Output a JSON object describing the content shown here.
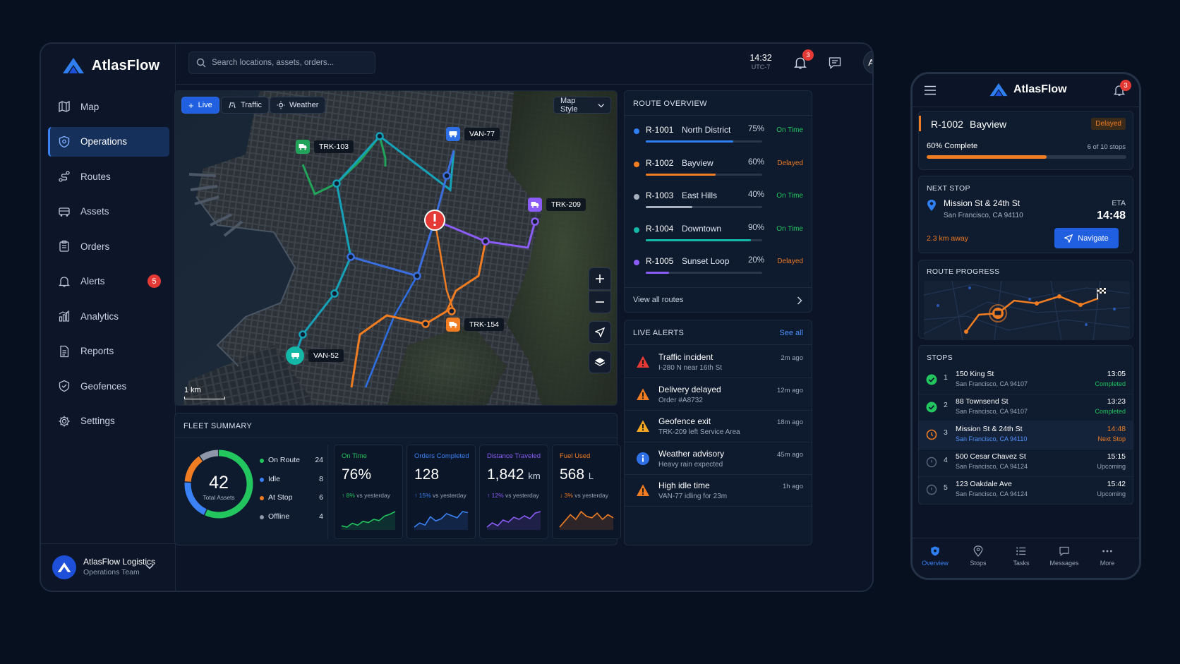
{
  "app": {
    "name": "AtlasFlow"
  },
  "sidebar": {
    "items": [
      {
        "label": "Map",
        "icon": "map-icon"
      },
      {
        "label": "Operations",
        "icon": "shield-icon",
        "active": true
      },
      {
        "label": "Routes",
        "icon": "route-icon"
      },
      {
        "label": "Assets",
        "icon": "truck-icon"
      },
      {
        "label": "Orders",
        "icon": "clipboard-icon"
      },
      {
        "label": "Alerts",
        "icon": "bell-icon",
        "badge": "5"
      },
      {
        "label": "Analytics",
        "icon": "bar-chart-icon"
      },
      {
        "label": "Reports",
        "icon": "document-icon"
      },
      {
        "label": "Geofences",
        "icon": "geofence-icon"
      },
      {
        "label": "Settings",
        "icon": "gear-icon"
      }
    ],
    "org": {
      "name": "AtlasFlow Logistics",
      "team": "Operations Team"
    }
  },
  "topbar": {
    "search_placeholder": "Search locations, assets, orders...",
    "time": "14:32",
    "timezone": "UTC-7",
    "notification_count": "3",
    "avatar_initials": "AM"
  },
  "map": {
    "chips": {
      "live": "Live",
      "traffic": "Traffic",
      "weather": "Weather"
    },
    "style_label": "Map Style",
    "scale_label": "1 km",
    "vehicles": [
      {
        "id": "TRK-103",
        "color": "#22a35a"
      },
      {
        "id": "VAN-77",
        "color": "#2f6fe6"
      },
      {
        "id": "TRK-209",
        "color": "#8b5cf6"
      },
      {
        "id": "TRK-154",
        "color": "#f07d22"
      },
      {
        "id": "VAN-52",
        "color": "#14b8a6"
      }
    ]
  },
  "route_overview": {
    "title": "ROUTE OVERVIEW",
    "routes": [
      {
        "id": "R-1001",
        "name": "North District",
        "progress": 75,
        "progress_label": "75%",
        "status": "On Time",
        "color": "#2f7ff0"
      },
      {
        "id": "R-1002",
        "name": "Bayview",
        "progress": 60,
        "progress_label": "60%",
        "status": "Delayed",
        "color": "#f07d22"
      },
      {
        "id": "R-1003",
        "name": "East Hills",
        "progress": 40,
        "progress_label": "40%",
        "status": "On Time",
        "color": "#a7b0bd"
      },
      {
        "id": "R-1004",
        "name": "Downtown",
        "progress": 90,
        "progress_label": "90%",
        "status": "On Time",
        "color": "#14b8a6"
      },
      {
        "id": "R-1005",
        "name": "Sunset Loop",
        "progress": 20,
        "progress_label": "20%",
        "status": "Delayed",
        "color": "#8b5cf6"
      }
    ],
    "view_all": "View all routes"
  },
  "live_alerts": {
    "title": "LIVE ALERTS",
    "see_all": "See all",
    "alerts": [
      {
        "title": "Traffic incident",
        "sub": "I-280 N near 16th St",
        "ago": "2m ago",
        "icon": "warning-red-icon"
      },
      {
        "title": "Delivery delayed",
        "sub": "Order #A8732",
        "ago": "12m ago",
        "icon": "warning-orange-icon"
      },
      {
        "title": "Geofence exit",
        "sub": "TRK-209 left Service Area",
        "ago": "18m ago",
        "icon": "warning-amber-icon"
      },
      {
        "title": "Weather advisory",
        "sub": "Heavy rain expected",
        "ago": "45m ago",
        "icon": "info-icon"
      },
      {
        "title": "High idle time",
        "sub": "VAN-77 idling for 23m",
        "ago": "1h ago",
        "icon": "warning-orange-icon"
      }
    ]
  },
  "fleet_summary": {
    "title": "FLEET SUMMARY",
    "total": "42",
    "total_label": "Total Assets",
    "legend": [
      {
        "label": "On Route",
        "value": 24,
        "value_label": "24",
        "color": "#22c55e"
      },
      {
        "label": "Idle",
        "value": 8,
        "value_label": "8",
        "color": "#3b82f6"
      },
      {
        "label": "At Stop",
        "value": 6,
        "value_label": "6",
        "color": "#f07d22"
      },
      {
        "label": "Offline",
        "value": 4,
        "value_label": "4",
        "color": "#8e98a8"
      }
    ],
    "kpis": [
      {
        "title": "On Time",
        "value": "76%",
        "unit": "",
        "delta": "↑ 8%",
        "delta_rest": " vs yesterday",
        "color": "#22c55e",
        "trend": [
          40,
          38,
          44,
          41,
          47,
          45,
          50,
          48,
          55,
          58,
          62
        ]
      },
      {
        "title": "Orders Completed",
        "value": "128",
        "unit": "",
        "delta": "↑ 15%",
        "delta_rest": " vs yesterday",
        "color": "#3b82f6",
        "trend": [
          40,
          44,
          42,
          50,
          46,
          48,
          53,
          51,
          49,
          55,
          54
        ]
      },
      {
        "title": "Distance Traveled",
        "value": "1,842",
        "unit": "km",
        "delta": "↑ 12%",
        "delta_rest": " vs yesterday",
        "color": "#8b5cf6",
        "trend": [
          38,
          44,
          40,
          48,
          45,
          52,
          49,
          54,
          50,
          58,
          60
        ]
      },
      {
        "title": "Fuel Used",
        "value": "568",
        "unit": "L",
        "delta": "↓ 3%",
        "delta_rest": " vs yesterday",
        "color": "#f07d22",
        "trend": [
          42,
          46,
          50,
          47,
          52,
          49,
          48,
          51,
          47,
          50,
          48
        ]
      }
    ]
  },
  "mobile": {
    "app_name": "AtlasFlow",
    "notification_count": "3",
    "route": {
      "id": "R-1002",
      "name": "Bayview",
      "status": "Delayed",
      "complete_label": "60% Complete",
      "complete": 60,
      "stops_label": "6 of 10 stops"
    },
    "next_stop": {
      "title": "NEXT STOP",
      "address": "Mission St & 24th St",
      "city": "San Francisco, CA 94110",
      "eta_label": "ETA",
      "eta": "14:48",
      "distance": "2.3 km away",
      "navigate": "Navigate"
    },
    "route_progress_title": "ROUTE PROGRESS",
    "stops_title": "STOPS",
    "stops": [
      {
        "n": "1",
        "address": "150 King St",
        "city": "San Francisco, CA 94107",
        "time": "13:05",
        "status": "Completed",
        "state": "done"
      },
      {
        "n": "2",
        "address": "88 Townsend St",
        "city": "San Francisco, CA 94107",
        "time": "13:23",
        "status": "Completed",
        "state": "done"
      },
      {
        "n": "3",
        "address": "Mission St & 24th St",
        "city": "San Francisco, CA 94110",
        "time": "14:48",
        "status": "Next Stop",
        "state": "next"
      },
      {
        "n": "4",
        "address": "500 Cesar Chavez St",
        "city": "San Francisco, CA 94124",
        "time": "15:15",
        "status": "Upcoming",
        "state": "upcoming"
      },
      {
        "n": "5",
        "address": "123 Oakdale Ave",
        "city": "San Francisco, CA 94124",
        "time": "15:42",
        "status": "Upcoming",
        "state": "upcoming"
      }
    ],
    "nav": [
      {
        "label": "Overview",
        "active": true
      },
      {
        "label": "Stops"
      },
      {
        "label": "Tasks"
      },
      {
        "label": "Messages"
      },
      {
        "label": "More"
      }
    ]
  },
  "colors": {
    "accent": "#2f6fe6",
    "on_time": "#22c55e",
    "delayed": "#f07d22",
    "danger": "#e53935"
  }
}
